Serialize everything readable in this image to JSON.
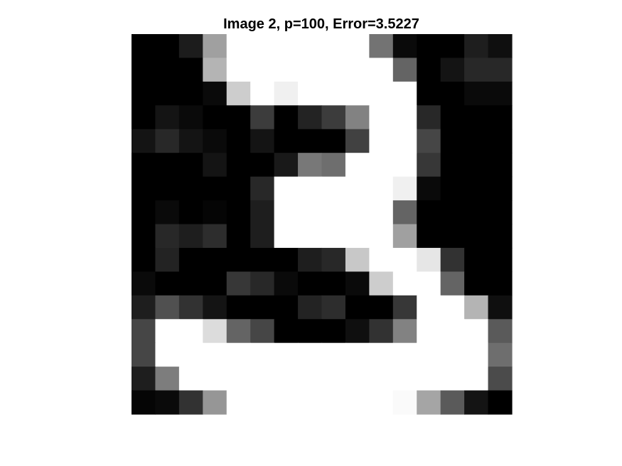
{
  "chart_data": {
    "type": "heatmap",
    "title": "Image 2, p=100, Error=3.5227",
    "xlabel": "",
    "ylabel": "",
    "colormap": "gray",
    "clim": [
      0,
      255
    ],
    "axes_visible": false,
    "grid": false,
    "rows": 16,
    "cols": 16,
    "values": [
      [
        0,
        0,
        28,
        160,
        255,
        255,
        255,
        255,
        255,
        255,
        115,
        10,
        0,
        0,
        30,
        15
      ],
      [
        0,
        0,
        0,
        180,
        255,
        255,
        255,
        255,
        255,
        255,
        255,
        100,
        0,
        20,
        40,
        40
      ],
      [
        0,
        0,
        0,
        10,
        205,
        255,
        240,
        255,
        255,
        255,
        255,
        255,
        0,
        0,
        10,
        10
      ],
      [
        0,
        20,
        10,
        0,
        0,
        60,
        0,
        35,
        60,
        130,
        255,
        255,
        40,
        0,
        0,
        0
      ],
      [
        20,
        40,
        20,
        10,
        0,
        20,
        0,
        0,
        0,
        65,
        255,
        255,
        70,
        0,
        0,
        0
      ],
      [
        0,
        0,
        0,
        20,
        0,
        0,
        25,
        120,
        110,
        255,
        255,
        255,
        55,
        0,
        0,
        0
      ],
      [
        0,
        0,
        0,
        0,
        0,
        40,
        255,
        255,
        255,
        255,
        255,
        240,
        10,
        0,
        0,
        0
      ],
      [
        0,
        10,
        0,
        5,
        0,
        30,
        255,
        255,
        255,
        255,
        255,
        100,
        0,
        0,
        0,
        0
      ],
      [
        0,
        40,
        30,
        45,
        0,
        30,
        255,
        255,
        255,
        255,
        255,
        160,
        0,
        0,
        0,
        0
      ],
      [
        0,
        35,
        0,
        0,
        0,
        0,
        0,
        30,
        40,
        200,
        255,
        255,
        230,
        50,
        0,
        0
      ],
      [
        10,
        0,
        0,
        0,
        55,
        40,
        10,
        0,
        0,
        10,
        205,
        255,
        255,
        100,
        0,
        0
      ],
      [
        30,
        80,
        50,
        20,
        0,
        0,
        0,
        35,
        45,
        0,
        0,
        55,
        255,
        255,
        180,
        15
      ],
      [
        70,
        255,
        255,
        220,
        100,
        70,
        0,
        0,
        0,
        15,
        50,
        130,
        255,
        255,
        255,
        90
      ],
      [
        70,
        255,
        255,
        255,
        255,
        255,
        255,
        255,
        255,
        255,
        255,
        255,
        255,
        255,
        255,
        110
      ],
      [
        30,
        125,
        255,
        255,
        255,
        255,
        255,
        255,
        255,
        255,
        255,
        255,
        255,
        255,
        255,
        75
      ],
      [
        5,
        10,
        50,
        150,
        255,
        255,
        255,
        255,
        255,
        255,
        255,
        250,
        165,
        90,
        20,
        0
      ]
    ]
  }
}
